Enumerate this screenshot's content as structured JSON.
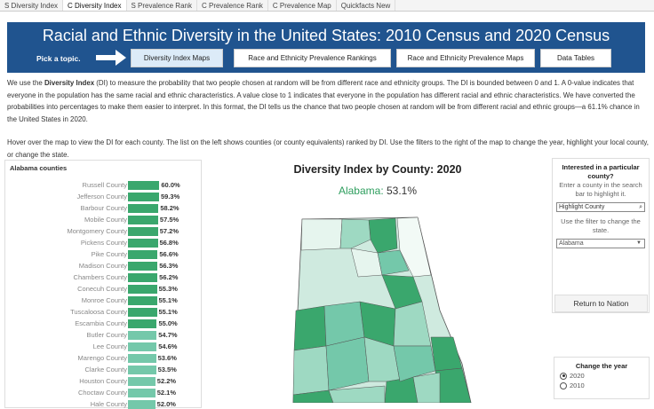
{
  "tabs": [
    "S Diversity Index",
    "C Diversity Index",
    "S Prevalence Rank",
    "C Prevalence Rank",
    "C Prevalence Map",
    "Quickfacts New"
  ],
  "active_tab": 1,
  "banner": {
    "title": "Racial and Ethnic Diversity in the United States: 2010 Census and 2020 Census",
    "pick": "Pick a topic.",
    "buttons": [
      "Diversity Index Maps",
      "Race and Ethnicity Prevalence Rankings",
      "Race and Ethnicity Prevalence Maps",
      "Data Tables"
    ]
  },
  "intro": {
    "p1_pre": "We use the ",
    "p1_bold": "Diversity Index",
    "p1_post": " (DI) to measure the probability that two people chosen at random will be from different race and ethnicity groups. The DI is bounded between 0 and 1. A 0-value indicates that everyone in the population has the same racial and ethnic characteristics. A value close to 1 indicates that everyone in the population has different racial and ethnic characteristics. We have converted the probabilities into percentages to make them easier to interpret. In this format, the DI tells us the chance that two people chosen at random will be from different racial and ethnic groups—a 61.1% chance in the United States in 2020.",
    "p2": "Hover over the map to view the DI for each county. The list on the left shows counties (or county equivalents) ranked by DI. Use the filters to the right of the map to change the year, highlight your local county, or change the state."
  },
  "list": {
    "title": "Alabama counties",
    "colors": {
      "high": "#3aa76d",
      "low": "#74c8aa"
    },
    "rows": [
      [
        "Russell County",
        60.0
      ],
      [
        "Jefferson County",
        59.3
      ],
      [
        "Barbour County",
        58.2
      ],
      [
        "Mobile County",
        57.5
      ],
      [
        "Montgomery County",
        57.2
      ],
      [
        "Pickens County",
        56.8
      ],
      [
        "Pike County",
        56.6
      ],
      [
        "Madison County",
        56.3
      ],
      [
        "Chambers County",
        56.2
      ],
      [
        "Conecuh County",
        55.3
      ],
      [
        "Monroe County",
        55.1
      ],
      [
        "Tuscaloosa County",
        55.1
      ],
      [
        "Escambia County",
        55.0
      ],
      [
        "Butler County",
        54.7
      ],
      [
        "Lee County",
        54.6
      ],
      [
        "Marengo County",
        53.6
      ],
      [
        "Clarke County",
        53.5
      ],
      [
        "Houston County",
        52.2
      ],
      [
        "Choctaw County",
        52.1
      ],
      [
        "Hale County",
        52.0
      ]
    ]
  },
  "map": {
    "title": "Diversity Index by County: 2020",
    "state": "Alabama:",
    "value": "53.1%"
  },
  "filters": {
    "heading": "Interested in a particular county?",
    "hint": "Enter a county in the search bar to highlight it.",
    "search_placeholder": "Highlight County",
    "state_hint": "Use the filter to change the state.",
    "state_value": "Alabama",
    "return_label": "Return to Nation",
    "year_heading": "Change the year",
    "years": [
      "2020",
      "2010"
    ],
    "selected_year": "2020"
  }
}
